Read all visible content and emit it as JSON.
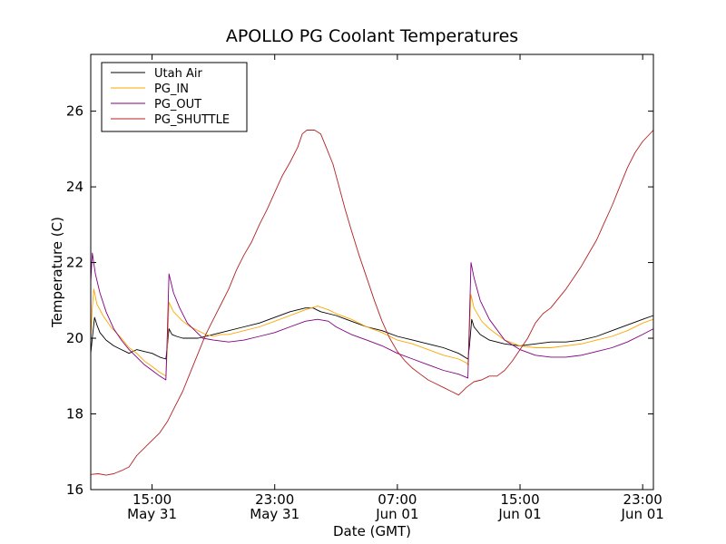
{
  "chart_data": {
    "type": "line",
    "title": "APOLLO PG Coolant Temperatures",
    "xlabel": "Date (GMT)",
    "ylabel": "Temperature (C)",
    "xlim": [
      11.0,
      47.7
    ],
    "ylim": [
      16,
      27.5
    ],
    "grid": false,
    "legend_position": "top-left",
    "x_units": "hours since 2011-05-31 00:00 GMT",
    "x_ticks": [
      {
        "x": 15,
        "time": "15:00",
        "date": "May 31"
      },
      {
        "x": 23,
        "time": "23:00",
        "date": "May 31"
      },
      {
        "x": 31,
        "time": "07:00",
        "date": "Jun 01"
      },
      {
        "x": 39,
        "time": "15:00",
        "date": "Jun 01"
      },
      {
        "x": 47,
        "time": "23:00",
        "date": "Jun 01"
      }
    ],
    "y_ticks": [
      16,
      18,
      20,
      22,
      24,
      26
    ],
    "series": [
      {
        "name": "Utah Air",
        "color": "#000000",
        "points": [
          [
            11.0,
            19.6
          ],
          [
            11.1,
            20.0
          ],
          [
            11.25,
            20.55
          ],
          [
            11.4,
            20.35
          ],
          [
            11.6,
            20.15
          ],
          [
            12.0,
            19.95
          ],
          [
            12.5,
            19.8
          ],
          [
            13.0,
            19.7
          ],
          [
            13.5,
            19.6
          ],
          [
            14.0,
            19.7
          ],
          [
            14.5,
            19.65
          ],
          [
            15.0,
            19.6
          ],
          [
            15.5,
            19.5
          ],
          [
            15.9,
            19.45
          ],
          [
            16.0,
            19.8
          ],
          [
            16.1,
            20.25
          ],
          [
            16.3,
            20.1
          ],
          [
            16.6,
            20.05
          ],
          [
            17.0,
            20.0
          ],
          [
            18.0,
            20.0
          ],
          [
            19.0,
            20.1
          ],
          [
            20.0,
            20.2
          ],
          [
            21.0,
            20.3
          ],
          [
            22.0,
            20.4
          ],
          [
            23.0,
            20.55
          ],
          [
            24.0,
            20.7
          ],
          [
            25.0,
            20.8
          ],
          [
            25.5,
            20.8
          ],
          [
            26.0,
            20.7
          ],
          [
            27.0,
            20.6
          ],
          [
            28.0,
            20.45
          ],
          [
            29.0,
            20.3
          ],
          [
            30.0,
            20.2
          ],
          [
            31.0,
            20.05
          ],
          [
            32.0,
            19.95
          ],
          [
            33.0,
            19.85
          ],
          [
            34.0,
            19.75
          ],
          [
            35.0,
            19.6
          ],
          [
            35.6,
            19.45
          ],
          [
            35.7,
            19.8
          ],
          [
            35.85,
            20.5
          ],
          [
            36.0,
            20.3
          ],
          [
            36.4,
            20.1
          ],
          [
            37.0,
            19.95
          ],
          [
            38.0,
            19.85
          ],
          [
            39.0,
            19.8
          ],
          [
            40.0,
            19.85
          ],
          [
            41.0,
            19.9
          ],
          [
            42.0,
            19.9
          ],
          [
            43.0,
            19.95
          ],
          [
            44.0,
            20.05
          ],
          [
            45.0,
            20.2
          ],
          [
            46.0,
            20.35
          ],
          [
            47.0,
            20.5
          ],
          [
            47.7,
            20.6
          ]
        ]
      },
      {
        "name": "PG_IN",
        "color": "#ffa500",
        "points": [
          [
            11.0,
            20.0
          ],
          [
            11.1,
            20.8
          ],
          [
            11.2,
            21.3
          ],
          [
            11.4,
            20.9
          ],
          [
            11.8,
            20.6
          ],
          [
            12.3,
            20.3
          ],
          [
            13.0,
            20.0
          ],
          [
            13.5,
            19.75
          ],
          [
            14.0,
            19.6
          ],
          [
            14.5,
            19.4
          ],
          [
            15.0,
            19.25
          ],
          [
            15.5,
            19.1
          ],
          [
            15.9,
            19.0
          ],
          [
            16.0,
            19.8
          ],
          [
            16.1,
            20.95
          ],
          [
            16.4,
            20.7
          ],
          [
            17.0,
            20.45
          ],
          [
            17.5,
            20.3
          ],
          [
            18.0,
            20.2
          ],
          [
            18.5,
            20.1
          ],
          [
            19.0,
            20.05
          ],
          [
            19.5,
            20.1
          ],
          [
            20.0,
            20.1
          ],
          [
            21.0,
            20.2
          ],
          [
            22.0,
            20.3
          ],
          [
            23.0,
            20.45
          ],
          [
            24.0,
            20.6
          ],
          [
            25.0,
            20.75
          ],
          [
            25.8,
            20.85
          ],
          [
            26.5,
            20.75
          ],
          [
            27.0,
            20.65
          ],
          [
            28.0,
            20.5
          ],
          [
            29.0,
            20.3
          ],
          [
            30.0,
            20.15
          ],
          [
            31.0,
            19.95
          ],
          [
            32.0,
            19.85
          ],
          [
            33.0,
            19.7
          ],
          [
            34.0,
            19.55
          ],
          [
            35.0,
            19.45
          ],
          [
            35.5,
            19.35
          ],
          [
            35.6,
            19.3
          ],
          [
            35.7,
            20.2
          ],
          [
            35.8,
            21.15
          ],
          [
            36.0,
            20.8
          ],
          [
            36.5,
            20.45
          ],
          [
            37.0,
            20.25
          ],
          [
            38.0,
            19.95
          ],
          [
            39.0,
            19.8
          ],
          [
            40.0,
            19.75
          ],
          [
            41.0,
            19.75
          ],
          [
            42.0,
            19.8
          ],
          [
            43.0,
            19.85
          ],
          [
            44.0,
            19.95
          ],
          [
            45.0,
            20.05
          ],
          [
            46.0,
            20.2
          ],
          [
            47.0,
            20.4
          ],
          [
            47.7,
            20.5
          ]
        ]
      },
      {
        "name": "PG_OUT",
        "color": "#800080",
        "points": [
          [
            11.0,
            21.5
          ],
          [
            11.1,
            22.25
          ],
          [
            11.3,
            21.7
          ],
          [
            11.6,
            21.2
          ],
          [
            12.0,
            20.7
          ],
          [
            12.5,
            20.25
          ],
          [
            13.0,
            19.95
          ],
          [
            13.5,
            19.7
          ],
          [
            14.0,
            19.5
          ],
          [
            14.5,
            19.3
          ],
          [
            15.0,
            19.15
          ],
          [
            15.5,
            19.0
          ],
          [
            15.9,
            18.9
          ],
          [
            16.0,
            20.2
          ],
          [
            16.1,
            21.7
          ],
          [
            16.4,
            21.2
          ],
          [
            16.8,
            20.8
          ],
          [
            17.3,
            20.4
          ],
          [
            17.8,
            20.2
          ],
          [
            18.3,
            20.0
          ],
          [
            19.0,
            19.95
          ],
          [
            20.0,
            19.9
          ],
          [
            21.0,
            19.95
          ],
          [
            22.0,
            20.05
          ],
          [
            23.0,
            20.15
          ],
          [
            24.0,
            20.3
          ],
          [
            25.0,
            20.45
          ],
          [
            25.8,
            20.5
          ],
          [
            26.5,
            20.45
          ],
          [
            27.0,
            20.3
          ],
          [
            28.0,
            20.1
          ],
          [
            29.0,
            19.95
          ],
          [
            30.0,
            19.8
          ],
          [
            31.0,
            19.6
          ],
          [
            32.0,
            19.45
          ],
          [
            33.0,
            19.3
          ],
          [
            34.0,
            19.15
          ],
          [
            35.0,
            19.05
          ],
          [
            35.6,
            18.95
          ],
          [
            35.7,
            20.5
          ],
          [
            35.8,
            22.0
          ],
          [
            36.0,
            21.6
          ],
          [
            36.4,
            21.0
          ],
          [
            37.0,
            20.5
          ],
          [
            38.0,
            19.95
          ],
          [
            39.0,
            19.7
          ],
          [
            40.0,
            19.55
          ],
          [
            41.0,
            19.5
          ],
          [
            42.0,
            19.5
          ],
          [
            43.0,
            19.55
          ],
          [
            44.0,
            19.65
          ],
          [
            45.0,
            19.75
          ],
          [
            46.0,
            19.9
          ],
          [
            47.0,
            20.1
          ],
          [
            47.7,
            20.25
          ]
        ]
      },
      {
        "name": "PG_SHUTTLE",
        "color": "#b22222",
        "points": [
          [
            11.0,
            16.4
          ],
          [
            11.5,
            16.42
          ],
          [
            12.0,
            16.38
          ],
          [
            12.5,
            16.42
          ],
          [
            13.0,
            16.5
          ],
          [
            13.5,
            16.6
          ],
          [
            14.0,
            16.9
          ],
          [
            14.5,
            17.1
          ],
          [
            15.0,
            17.3
          ],
          [
            15.5,
            17.5
          ],
          [
            16.0,
            17.8
          ],
          [
            16.5,
            18.2
          ],
          [
            17.0,
            18.6
          ],
          [
            17.5,
            19.1
          ],
          [
            18.0,
            19.6
          ],
          [
            18.5,
            20.1
          ],
          [
            19.0,
            20.5
          ],
          [
            19.5,
            20.9
          ],
          [
            20.0,
            21.3
          ],
          [
            20.5,
            21.8
          ],
          [
            21.0,
            22.2
          ],
          [
            21.5,
            22.55
          ],
          [
            22.0,
            23.0
          ],
          [
            22.5,
            23.4
          ],
          [
            23.0,
            23.85
          ],
          [
            23.5,
            24.3
          ],
          [
            24.0,
            24.65
          ],
          [
            24.5,
            25.05
          ],
          [
            24.8,
            25.4
          ],
          [
            25.1,
            25.5
          ],
          [
            25.6,
            25.5
          ],
          [
            26.0,
            25.4
          ],
          [
            26.4,
            25.0
          ],
          [
            26.8,
            24.6
          ],
          [
            27.2,
            24.0
          ],
          [
            27.6,
            23.4
          ],
          [
            28.0,
            22.85
          ],
          [
            28.5,
            22.2
          ],
          [
            29.0,
            21.6
          ],
          [
            29.5,
            21.0
          ],
          [
            30.0,
            20.45
          ],
          [
            30.5,
            20.0
          ],
          [
            31.0,
            19.65
          ],
          [
            31.5,
            19.4
          ],
          [
            32.0,
            19.2
          ],
          [
            32.5,
            19.05
          ],
          [
            33.0,
            18.9
          ],
          [
            33.5,
            18.8
          ],
          [
            34.0,
            18.7
          ],
          [
            34.5,
            18.6
          ],
          [
            35.0,
            18.5
          ],
          [
            35.5,
            18.7
          ],
          [
            36.0,
            18.85
          ],
          [
            36.5,
            18.9
          ],
          [
            37.0,
            19.0
          ],
          [
            37.5,
            19.0
          ],
          [
            38.0,
            19.15
          ],
          [
            38.5,
            19.4
          ],
          [
            39.0,
            19.7
          ],
          [
            39.5,
            20.0
          ],
          [
            40.0,
            20.4
          ],
          [
            40.5,
            20.65
          ],
          [
            41.0,
            20.8
          ],
          [
            41.5,
            21.05
          ],
          [
            42.0,
            21.3
          ],
          [
            42.5,
            21.6
          ],
          [
            43.0,
            21.9
          ],
          [
            43.5,
            22.25
          ],
          [
            44.0,
            22.6
          ],
          [
            44.5,
            23.05
          ],
          [
            45.0,
            23.5
          ],
          [
            45.5,
            24.0
          ],
          [
            46.0,
            24.5
          ],
          [
            46.5,
            24.9
          ],
          [
            47.0,
            25.2
          ],
          [
            47.7,
            25.5
          ]
        ]
      }
    ]
  }
}
